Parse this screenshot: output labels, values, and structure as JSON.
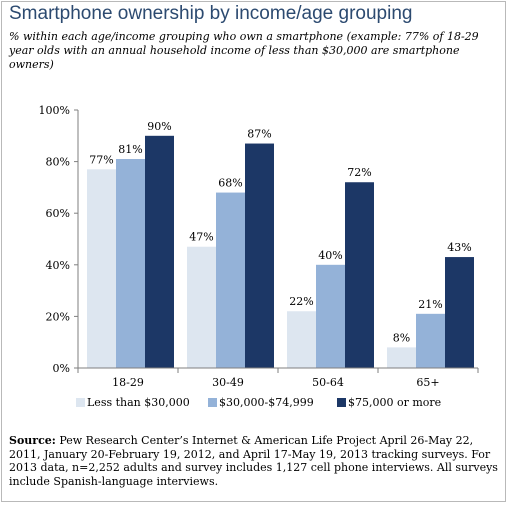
{
  "title": "Smartphone ownership by income/age grouping",
  "subtitle": "% within each age/income grouping who own a smartphone (example: 77% of 18-29 year olds with an annual household income of less than $30,000 are smartphone owners)",
  "source_label": "Source:",
  "source_text": "Pew Research Center’s Internet & American Life Project April 26-May 22, 2011, January 20-February 19, 2012, and April 17-May 19, 2013 tracking surveys. For 2013 data, n=2,252 adults and survey includes 1,127 cell phone interviews. All surveys include Spanish-language interviews.",
  "chart_data": {
    "type": "bar",
    "categories": [
      "18-29",
      "30-49",
      "50-64",
      "65+"
    ],
    "series": [
      {
        "name": "Less than $30,000",
        "color": "#dde6f0",
        "values": [
          77,
          47,
          22,
          8
        ]
      },
      {
        "name": "$30,000-$74,999",
        "color": "#94b2d8",
        "values": [
          81,
          68,
          40,
          21
        ]
      },
      {
        "name": "$75,000 or more",
        "color": "#1c3766",
        "values": [
          90,
          87,
          72,
          43
        ]
      }
    ],
    "yticks": [
      "0%",
      "20%",
      "40%",
      "60%",
      "80%",
      "100%"
    ],
    "ylim": [
      0,
      100
    ],
    "value_suffix": "%",
    "grid": false,
    "legend_position": "bottom"
  }
}
